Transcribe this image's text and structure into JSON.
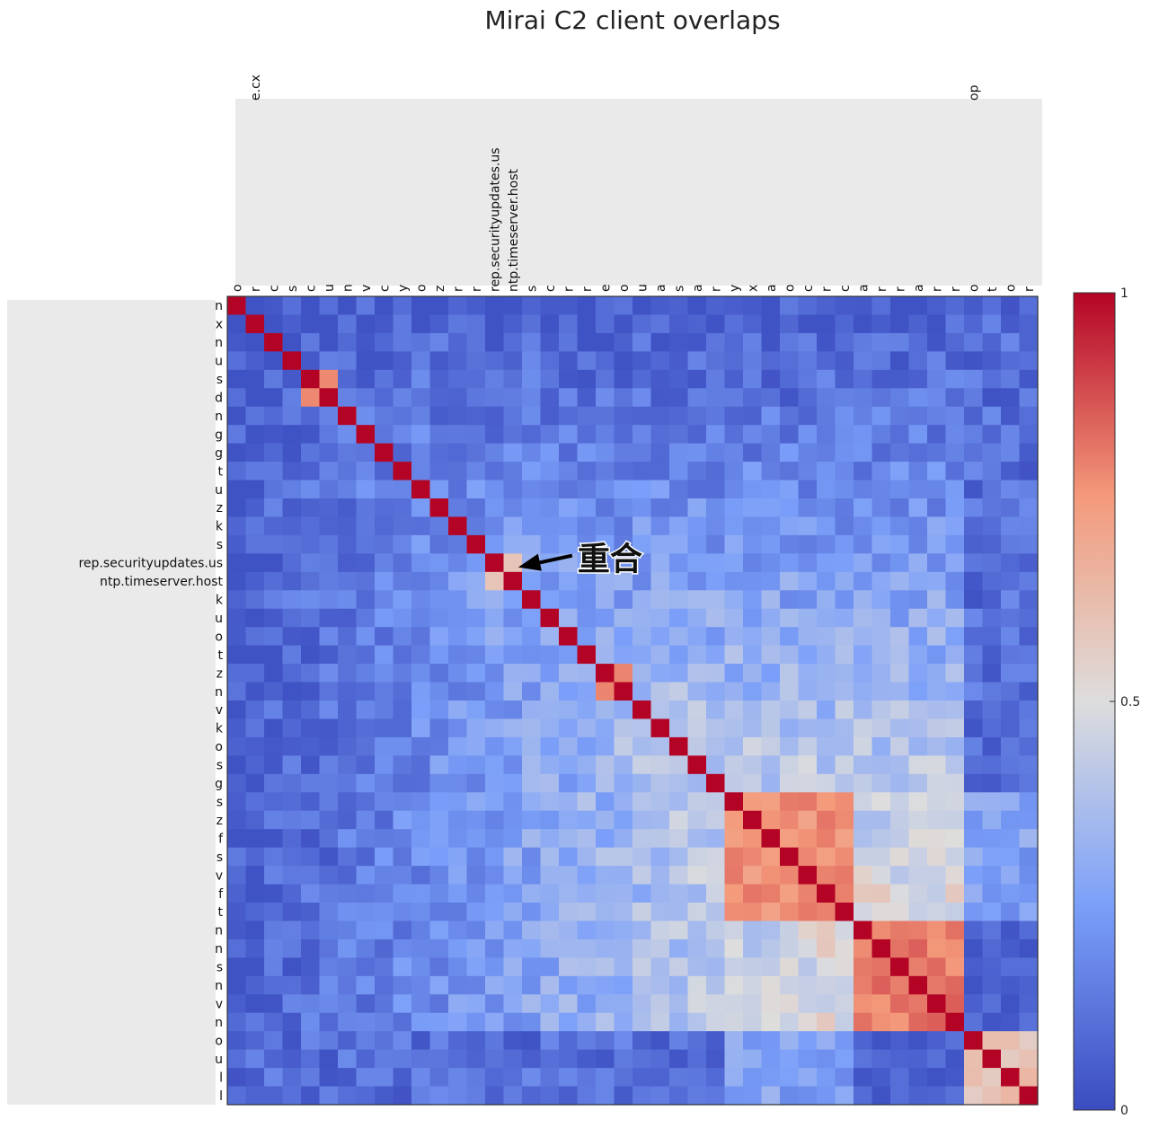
{
  "chart_data": {
    "type": "heatmap",
    "title": "Mirai C2 client overlaps",
    "row_labels": [
      "n",
      "x",
      "n",
      "u",
      "s",
      "d",
      "n",
      "g",
      "g",
      "t",
      "u",
      "z",
      "k",
      "s",
      "rep.securityupdates.us",
      "ntp.timeserver.host",
      "k",
      "u",
      "o",
      "t",
      "z",
      "n",
      "v",
      "k",
      "o",
      "s",
      "g",
      "s",
      "z",
      "f",
      "s",
      "v",
      "f",
      "t",
      "n",
      "n",
      "s",
      "n",
      "v",
      "n",
      "o",
      "u",
      "l",
      "l"
    ],
    "col_labels": [
      "o",
      "r",
      "c",
      "s",
      "c",
      "u",
      "n",
      "v",
      "c",
      "y",
      "o",
      "z",
      "r",
      "r",
      "rep.securityupdates.us",
      "ntp.timeserver.host",
      "s",
      "c",
      "r",
      "r",
      "e",
      "o",
      "u",
      "a",
      "s",
      "a",
      "r",
      "y",
      "x",
      "a",
      "o",
      "c",
      "r",
      "c",
      "a",
      "r",
      "r",
      "a",
      "r",
      "r",
      "o",
      "t",
      "o",
      "r"
    ],
    "top_partial_labels": [
      {
        "col": 1,
        "text": "e.cx"
      },
      {
        "col": 40,
        "text": "op"
      }
    ],
    "colorbar": {
      "min": 0,
      "max": 1,
      "ticks": [
        "0",
        "0.5",
        "1"
      ]
    },
    "colormap": {
      "low": "#3b4cc0",
      "mid": "#dddddd",
      "high": "#b40426"
    },
    "high_blocks": [
      {
        "rows": [
          4,
          5
        ],
        "value": 0.82
      },
      {
        "rows": [
          14,
          15
        ],
        "value": 0.62
      },
      {
        "rows": [
          20,
          21
        ],
        "value": 0.78
      },
      {
        "rows": [
          27,
          33
        ],
        "value": 0.76
      },
      {
        "rows": [
          34,
          39
        ],
        "value": 0.8
      },
      {
        "rows": [
          40,
          43
        ],
        "value": 0.6
      }
    ],
    "annotation": {
      "text": "重合",
      "row": 14,
      "col": 15
    }
  }
}
